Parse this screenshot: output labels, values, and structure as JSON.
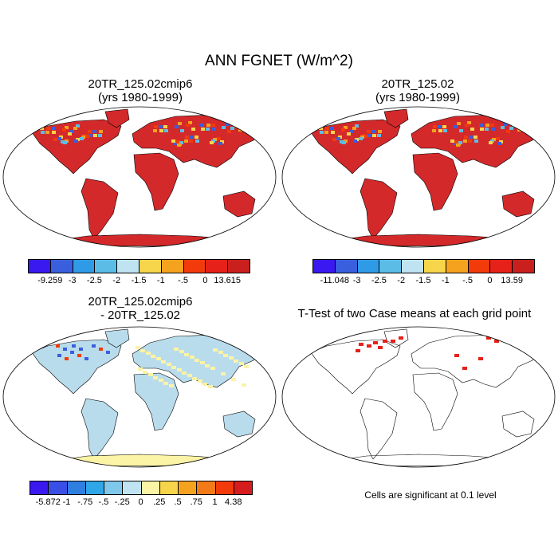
{
  "main_title": "ANN FGNET (W/m^2)",
  "panels": [
    {
      "title_line1": "20TR_125.02cmip6",
      "title_line2": "(yrs 1980-1999)"
    },
    {
      "title_line1": "20TR_125.02",
      "title_line2": "(yrs 1980-1999)"
    },
    {
      "title_line1": "20TR_125.02cmip6",
      "title_line2": "- 20TR_125.02"
    },
    {
      "title_line1": "T-Test of two Case means at each grid point",
      "title_line2": ""
    }
  ],
  "colorbars": [
    {
      "labels": [
        "-9.259",
        "-3",
        "-2.5",
        "-2",
        "-1.5",
        "-1",
        "-.5",
        "0",
        "13.615"
      ],
      "colors": [
        "#3a18f0",
        "#3a5fde",
        "#2f9be6",
        "#5bbde6",
        "#bfe3f0",
        "#f7d54a",
        "#f5a21f",
        "#f23a0b",
        "#e5211a",
        "#c9201e"
      ]
    },
    {
      "labels": [
        "-11.048",
        "-3",
        "-2.5",
        "-2",
        "-1.5",
        "-1",
        "-.5",
        "0",
        "13.59"
      ],
      "colors": [
        "#3a18f0",
        "#3a5fde",
        "#2f9be6",
        "#5bbde6",
        "#bfe3f0",
        "#f7d54a",
        "#f5a21f",
        "#f23a0b",
        "#e5211a",
        "#c9201e"
      ]
    },
    {
      "labels": [
        "-5.872",
        "-1",
        "-.75",
        "-.5",
        "-.25",
        "0",
        ".25",
        ".5",
        ".75",
        "1",
        "4.38"
      ],
      "colors": [
        "#3a18f0",
        "#3a4fe6",
        "#2f7fe0",
        "#2fa6e8",
        "#7fc8ec",
        "#bfe3f0",
        "#fbf3a5",
        "#f7d54a",
        "#f5a21f",
        "#f27a18",
        "#f23a0b",
        "#d61d1d"
      ]
    }
  ],
  "ttest_note": "Cells are significant at 0.1 level",
  "colors": {
    "land_warm": "#d3292b",
    "land_diff": "#b9dcec",
    "land_diff_pos": "#fbf3a5",
    "significant": "#e5211a"
  }
}
